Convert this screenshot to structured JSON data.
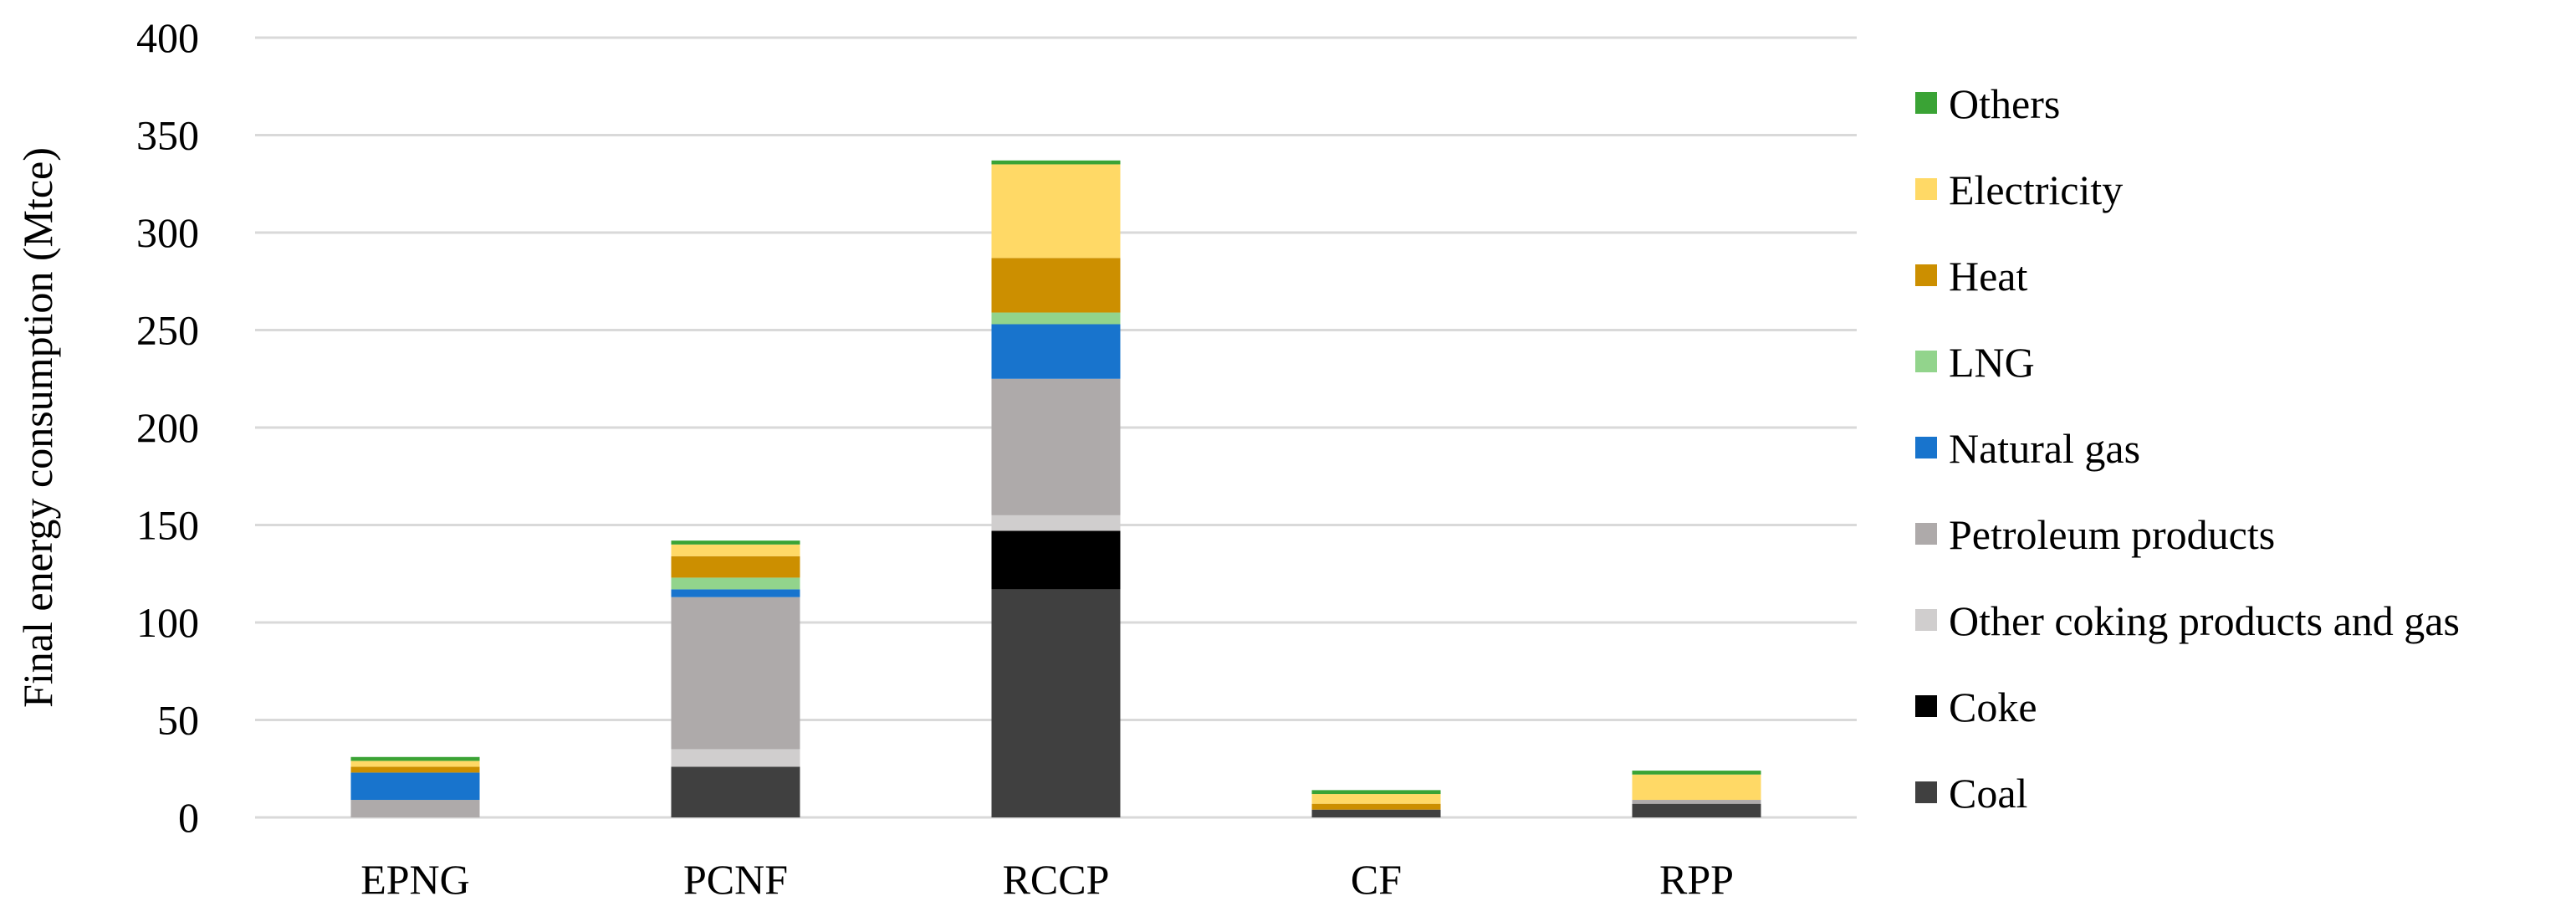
{
  "chart_data": {
    "type": "bar",
    "stacked": true,
    "title": "",
    "xlabel": "",
    "ylabel": "Final energy consumption (Mtce)",
    "ylim": [
      0,
      400
    ],
    "yticks": [
      0,
      50,
      100,
      150,
      200,
      250,
      300,
      350,
      400
    ],
    "grid": true,
    "legend_position": "right",
    "categories": [
      "EPNG",
      "PCNF",
      "RCCP",
      "CF",
      "RPP"
    ],
    "series": [
      {
        "name": "Coal",
        "color": "#404040",
        "values": [
          0,
          26,
          117,
          4,
          7
        ]
      },
      {
        "name": "Coke",
        "color": "#000000",
        "values": [
          0,
          0,
          30,
          0,
          0
        ]
      },
      {
        "name": "Other coking products and gas",
        "color": "#d0cece",
        "values": [
          0,
          9,
          8,
          0,
          0
        ]
      },
      {
        "name": "Petroleum products",
        "color": "#aeaaaa",
        "values": [
          9,
          78,
          70,
          0,
          2
        ]
      },
      {
        "name": "Natural gas",
        "color": "#1874cd",
        "values": [
          14,
          4,
          28,
          0,
          0
        ]
      },
      {
        "name": "LNG",
        "color": "#92d48c",
        "values": [
          0,
          6,
          6,
          0,
          0
        ]
      },
      {
        "name": "Heat",
        "color": "#cc8f00",
        "values": [
          3,
          11,
          28,
          3,
          0
        ]
      },
      {
        "name": "Electricity",
        "color": "#ffd966",
        "values": [
          3,
          6,
          48,
          5,
          13
        ]
      },
      {
        "name": "Others",
        "color": "#3aa335",
        "values": [
          2,
          2,
          2,
          2,
          2
        ]
      }
    ]
  }
}
